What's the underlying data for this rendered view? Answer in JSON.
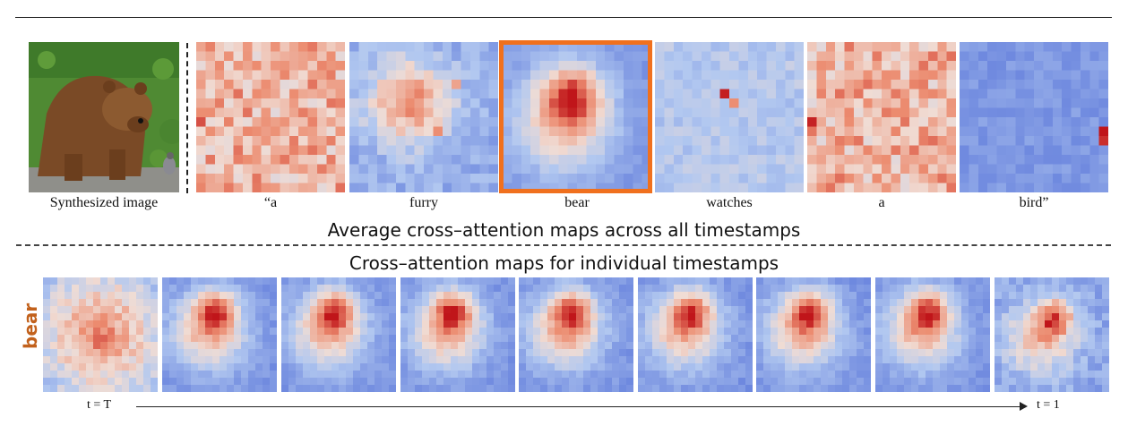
{
  "top_captions": {
    "image": "Synthesized image",
    "words": [
      "“a",
      "furry",
      "bear",
      "watches",
      "a",
      "bird”"
    ]
  },
  "headings": {
    "average": "Average cross–attention maps across all timestamps",
    "individual": "Cross–attention maps for individual  timestamps"
  },
  "side_label": "bear",
  "timeline": {
    "start": "t = T",
    "end": "t = 1"
  },
  "highlight_word": "bear",
  "colors": {
    "highlight": "#f0701e",
    "side_label": "#c2611c",
    "cold": "#5470d8",
    "hot": "#c0151a"
  }
}
